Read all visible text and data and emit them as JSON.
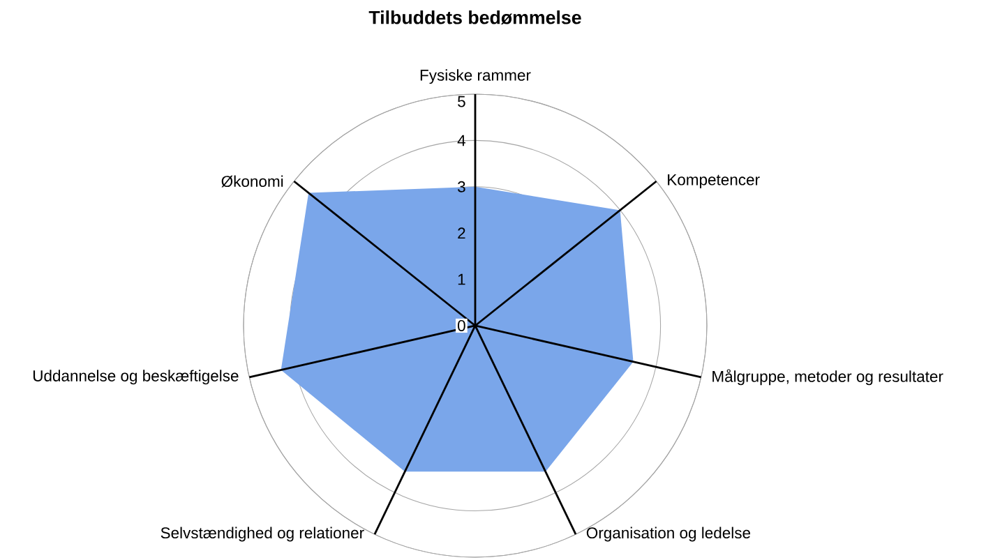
{
  "chart_data": {
    "type": "radar",
    "title": "Tilbuddets bedømmelse",
    "categories": [
      "Fysiske rammer",
      "Kompetencer",
      "Målgruppe, metoder og resultater",
      "Organisation og ledelse",
      "Selvstændighed og relationer",
      "Uddannelse og beskæftigelse",
      "Økonomi"
    ],
    "series": [
      {
        "color": "#7aa6ea",
        "values": [
          3,
          4,
          3.5,
          3.5,
          3.5,
          4.3,
          4.6
        ]
      }
    ],
    "ylim": [
      0,
      5
    ],
    "yticks": [
      0,
      1,
      2,
      3,
      4,
      5
    ],
    "grid": true
  }
}
